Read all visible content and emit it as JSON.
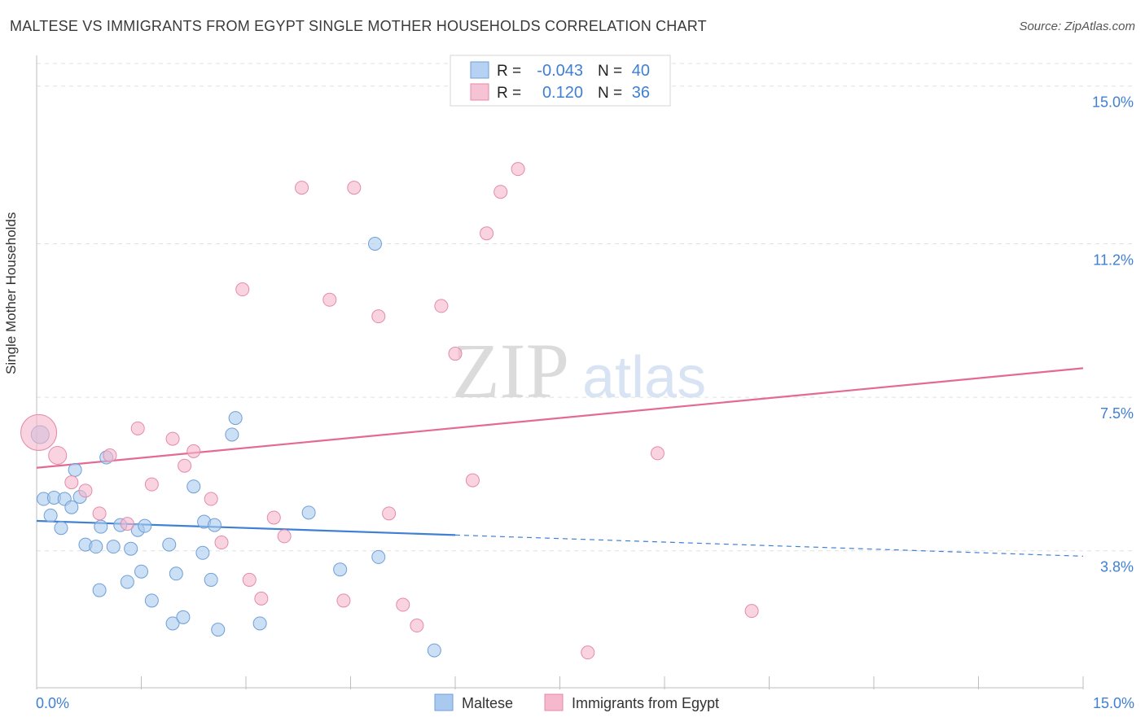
{
  "title": "MALTESE VS IMMIGRANTS FROM EGYPT SINGLE MOTHER HOUSEHOLDS CORRELATION CHART",
  "source": "Source: ZipAtlas.com",
  "watermark": {
    "zip": "ZIP",
    "atlas": "atlas"
  },
  "colors": {
    "blue": "#3f7fd4",
    "blue_fill": "#a9c9ef",
    "pink": "#e46a96",
    "pink_fill": "#f5b8cc",
    "axis_text": "#3f7fd4"
  },
  "legend": {
    "rows": [
      {
        "r_label": "R =",
        "r_value": "-0.043",
        "n_label": "N =",
        "n_value": "40"
      },
      {
        "r_label": "R =",
        "r_value": "0.120",
        "n_label": "N =",
        "n_value": "36"
      }
    ]
  },
  "chart_data": {
    "type": "scatter",
    "title": "MALTESE VS IMMIGRANTS FROM EGYPT SINGLE MOTHER HOUSEHOLDS CORRELATION CHART",
    "xlabel": "",
    "ylabel": "Single Mother Households",
    "xlim": [
      0,
      15
    ],
    "ylim": [
      0.5,
      15.7
    ],
    "x_tick_labels": [
      "0.0%",
      "15.0%"
    ],
    "y_ticks": [
      3.8,
      7.5,
      11.2,
      15.0
    ],
    "y_tick_labels": [
      "3.8%",
      "7.5%",
      "11.2%",
      "15.0%"
    ],
    "grid": true,
    "legend_position": "bottom",
    "series": [
      {
        "name": "Maltese",
        "color": "#3f7fd4",
        "trend": {
          "x": [
            0,
            6.0
          ],
          "y": [
            4.52,
            4.18
          ],
          "dashed_x": [
            6.0,
            15.0
          ],
          "dashed_y": [
            4.18,
            3.67
          ]
        },
        "points": [
          [
            0.05,
            6.6
          ],
          [
            0.1,
            5.05
          ],
          [
            0.2,
            4.65
          ],
          [
            0.25,
            5.08
          ],
          [
            0.35,
            4.35
          ],
          [
            0.4,
            5.05
          ],
          [
            0.5,
            4.85
          ],
          [
            0.55,
            5.75
          ],
          [
            0.62,
            5.1
          ],
          [
            0.7,
            3.95
          ],
          [
            0.85,
            3.9
          ],
          [
            0.9,
            2.85
          ],
          [
            0.92,
            4.38
          ],
          [
            1.0,
            6.05
          ],
          [
            1.1,
            3.9
          ],
          [
            1.2,
            4.42
          ],
          [
            1.3,
            3.05
          ],
          [
            1.35,
            3.85
          ],
          [
            1.45,
            4.3
          ],
          [
            1.5,
            3.3
          ],
          [
            1.55,
            4.4
          ],
          [
            1.65,
            2.6
          ],
          [
            1.9,
            3.95
          ],
          [
            1.95,
            2.05
          ],
          [
            2.0,
            3.25
          ],
          [
            2.1,
            2.2
          ],
          [
            2.25,
            5.35
          ],
          [
            2.38,
            3.75
          ],
          [
            2.4,
            4.5
          ],
          [
            2.5,
            3.1
          ],
          [
            2.55,
            4.42
          ],
          [
            2.6,
            1.9
          ],
          [
            2.8,
            6.6
          ],
          [
            2.85,
            7.0
          ],
          [
            3.2,
            2.05
          ],
          [
            3.9,
            4.72
          ],
          [
            4.35,
            3.35
          ],
          [
            4.85,
            11.2
          ],
          [
            4.9,
            3.65
          ],
          [
            5.7,
            1.4
          ]
        ]
      },
      {
        "name": "Immigrants from Egypt",
        "color": "#e46a96",
        "trend": {
          "x": [
            0,
            15.0
          ],
          "y": [
            5.8,
            8.2
          ]
        },
        "points": [
          [
            0.03,
            6.65
          ],
          [
            0.3,
            6.1
          ],
          [
            0.5,
            5.45
          ],
          [
            0.7,
            5.25
          ],
          [
            0.9,
            4.7
          ],
          [
            1.05,
            6.1
          ],
          [
            1.3,
            4.45
          ],
          [
            1.45,
            6.75
          ],
          [
            1.65,
            5.4
          ],
          [
            1.95,
            6.5
          ],
          [
            2.12,
            5.85
          ],
          [
            2.25,
            6.2
          ],
          [
            2.5,
            5.05
          ],
          [
            2.65,
            4.0
          ],
          [
            2.95,
            10.1
          ],
          [
            3.05,
            3.1
          ],
          [
            3.22,
            2.65
          ],
          [
            3.4,
            4.6
          ],
          [
            3.55,
            4.15
          ],
          [
            3.8,
            12.55
          ],
          [
            4.2,
            9.85
          ],
          [
            4.4,
            2.6
          ],
          [
            4.55,
            12.55
          ],
          [
            4.9,
            9.45
          ],
          [
            5.05,
            4.7
          ],
          [
            5.25,
            2.5
          ],
          [
            5.45,
            2.0
          ],
          [
            5.8,
            9.7
          ],
          [
            6.0,
            8.55
          ],
          [
            6.25,
            5.5
          ],
          [
            6.45,
            11.45
          ],
          [
            6.65,
            12.45
          ],
          [
            6.9,
            13.0
          ],
          [
            7.9,
            1.35
          ],
          [
            8.9,
            6.15
          ],
          [
            10.25,
            2.35
          ]
        ]
      }
    ]
  }
}
